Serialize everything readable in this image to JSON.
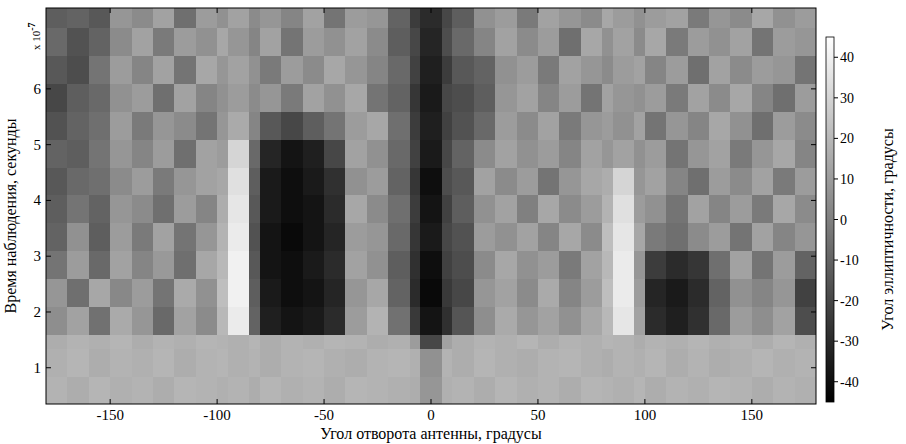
{
  "chart_data": {
    "type": "heatmap",
    "x_label": "Угол отворота антенны, градусы",
    "y_label": "Время наблюдения, секунды",
    "y_multiplier": {
      "base": "x 10",
      "exponent": "-7"
    },
    "xlim": [
      -180,
      180
    ],
    "xticks": [
      -150,
      -100,
      -50,
      0,
      50,
      100,
      150
    ],
    "ylim": [
      0.35,
      7.45
    ],
    "yticks": [
      1,
      2,
      3,
      4,
      5,
      6
    ],
    "x_bins": [
      -180,
      -170,
      -160,
      -150,
      -140,
      -130,
      -120,
      -110,
      -100,
      -95,
      -85,
      -80,
      -70,
      -60,
      -50,
      -40,
      -30,
      -20,
      -10,
      -5,
      5,
      10,
      20,
      30,
      40,
      50,
      60,
      70,
      80,
      85,
      95,
      100,
      110,
      120,
      130,
      140,
      150,
      160,
      170,
      180
    ],
    "y_bins": [
      0.35,
      0.85,
      1.35,
      1.6,
      2.1,
      2.6,
      3.1,
      3.6,
      4.1,
      4.6,
      5.1,
      5.6,
      6.1,
      6.6,
      7.1,
      7.45
    ],
    "cells": [
      [
        18,
        16,
        19,
        17,
        18,
        16,
        19,
        18,
        17,
        18,
        16,
        19,
        17,
        18,
        16,
        19,
        18,
        17,
        16,
        8,
        17,
        18,
        16,
        19,
        17,
        18,
        16,
        19,
        18,
        17,
        19,
        16,
        18,
        17,
        19,
        18,
        16,
        18,
        17
      ],
      [
        17,
        19,
        16,
        18,
        17,
        19,
        16,
        18,
        19,
        17,
        18,
        16,
        18,
        19,
        17,
        16,
        18,
        19,
        17,
        6,
        18,
        16,
        19,
        17,
        16,
        18,
        19,
        17,
        16,
        18,
        17,
        19,
        16,
        18,
        16,
        17,
        19,
        17,
        18
      ],
      [
        16,
        18,
        17,
        19,
        16,
        18,
        17,
        19,
        18,
        17,
        19,
        16,
        18,
        17,
        19,
        18,
        16,
        17,
        10,
        -20,
        12,
        16,
        18,
        17,
        19,
        16,
        18,
        17,
        19,
        18,
        16,
        18,
        17,
        19,
        17,
        18,
        16,
        19,
        17
      ],
      [
        5,
        12,
        -5,
        15,
        8,
        -8,
        12,
        4,
        20,
        38,
        -10,
        -34,
        -38,
        -36,
        -30,
        10,
        18,
        -5,
        -25,
        -38,
        -28,
        -15,
        5,
        15,
        8,
        12,
        6,
        14,
        20,
        36,
        12,
        -30,
        -34,
        -28,
        -8,
        10,
        5,
        12,
        -18
      ],
      [
        8,
        -6,
        14,
        3,
        10,
        -4,
        15,
        6,
        22,
        40,
        -12,
        -36,
        -40,
        -38,
        -32,
        8,
        14,
        -10,
        -30,
        -42,
        -25,
        -20,
        8,
        12,
        4,
        15,
        2,
        10,
        22,
        38,
        10,
        -32,
        -36,
        -30,
        -10,
        6,
        2,
        8,
        -22
      ],
      [
        -4,
        10,
        -8,
        12,
        2,
        9,
        -6,
        14,
        20,
        40,
        -14,
        -38,
        -40,
        -36,
        -30,
        12,
        6,
        -12,
        -28,
        -40,
        -22,
        -18,
        4,
        14,
        6,
        10,
        -2,
        12,
        20,
        38,
        8,
        -24,
        -30,
        -26,
        -6,
        12,
        -4,
        10,
        -10
      ],
      [
        -10,
        6,
        -12,
        10,
        -2,
        12,
        -4,
        8,
        18,
        38,
        -16,
        -38,
        -42,
        -38,
        -32,
        10,
        8,
        -8,
        -26,
        -36,
        -20,
        -16,
        10,
        6,
        12,
        2,
        14,
        4,
        22,
        36,
        14,
        -2,
        -6,
        4,
        10,
        -4,
        12,
        2,
        8
      ],
      [
        -12,
        -4,
        -10,
        8,
        4,
        -6,
        10,
        2,
        16,
        36,
        -14,
        -36,
        -40,
        -38,
        -30,
        14,
        4,
        -6,
        -24,
        -38,
        -22,
        -12,
        6,
        12,
        0,
        14,
        4,
        10,
        18,
        34,
        10,
        6,
        -4,
        12,
        2,
        10,
        -2,
        14,
        4
      ],
      [
        -14,
        -8,
        -6,
        4,
        10,
        -2,
        8,
        12,
        14,
        34,
        -12,
        -36,
        -40,
        -36,
        -28,
        6,
        10,
        -10,
        -26,
        -40,
        -18,
        -14,
        12,
        4,
        10,
        -4,
        8,
        14,
        16,
        30,
        8,
        12,
        2,
        -6,
        10,
        4,
        12,
        -2,
        10
      ],
      [
        -10,
        -12,
        -4,
        8,
        2,
        10,
        -6,
        12,
        10,
        30,
        -8,
        -32,
        -38,
        -34,
        -20,
        12,
        6,
        -8,
        -22,
        -36,
        -20,
        -10,
        4,
        12,
        6,
        10,
        2,
        12,
        8,
        12,
        6,
        10,
        -4,
        8,
        12,
        -2,
        8,
        14,
        2
      ],
      [
        -16,
        -10,
        -6,
        10,
        -2,
        8,
        4,
        -4,
        8,
        15,
        2,
        -14,
        -20,
        -12,
        -4,
        10,
        14,
        -6,
        -24,
        -34,
        -22,
        -16,
        -8,
        10,
        4,
        12,
        -2,
        8,
        10,
        6,
        12,
        -4,
        8,
        2,
        14,
        6,
        -6,
        10,
        4
      ],
      [
        -20,
        -12,
        -8,
        6,
        10,
        -6,
        12,
        2,
        6,
        10,
        4,
        8,
        -2,
        12,
        6,
        14,
        -4,
        -10,
        -26,
        -36,
        -20,
        -18,
        -12,
        8,
        12,
        2,
        10,
        -4,
        12,
        8,
        6,
        10,
        -2,
        12,
        4,
        14,
        2,
        -6,
        10
      ],
      [
        -14,
        -18,
        -4,
        10,
        2,
        12,
        -4,
        14,
        8,
        12,
        6,
        -2,
        10,
        4,
        14,
        8,
        2,
        -8,
        -22,
        -34,
        -24,
        -14,
        -10,
        6,
        10,
        -2,
        12,
        8,
        4,
        10,
        12,
        2,
        10,
        -6,
        12,
        4,
        10,
        8,
        -4
      ],
      [
        -8,
        -16,
        -10,
        4,
        12,
        -2,
        10,
        6,
        14,
        8,
        2,
        12,
        -4,
        10,
        6,
        12,
        4,
        -12,
        -20,
        -32,
        -18,
        -8,
        2,
        12,
        4,
        10,
        -6,
        14,
        6,
        12,
        4,
        14,
        -2,
        10,
        6,
        12,
        -4,
        10,
        8
      ],
      [
        -12,
        -10,
        -14,
        8,
        4,
        12,
        -6,
        10,
        6,
        12,
        4,
        8,
        2,
        12,
        -4,
        10,
        8,
        -10,
        -24,
        -30,
        -20,
        -12,
        6,
        10,
        -2,
        12,
        8,
        4,
        14,
        10,
        6,
        10,
        12,
        -2,
        8,
        4,
        14,
        6,
        10
      ]
    ],
    "colorbar": {
      "label": "Угол эллиптичности, градусы",
      "range": [
        -45,
        45
      ],
      "ticks": [
        -40,
        -30,
        -20,
        -10,
        0,
        10,
        20,
        30,
        40
      ]
    }
  }
}
